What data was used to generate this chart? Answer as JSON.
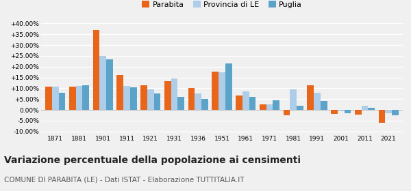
{
  "years": [
    1871,
    1881,
    1901,
    1911,
    1921,
    1931,
    1936,
    1951,
    1961,
    1971,
    1981,
    1991,
    2001,
    2011,
    2021
  ],
  "parabita": [
    10.8,
    10.8,
    37.0,
    16.0,
    11.5,
    13.3,
    10.0,
    17.8,
    6.7,
    2.7,
    -2.5,
    11.5,
    -1.8,
    -2.2,
    -6.0
  ],
  "provincia_le": [
    10.8,
    11.0,
    25.0,
    11.2,
    9.5,
    14.5,
    7.5,
    17.5,
    8.5,
    2.5,
    9.5,
    8.0,
    -0.5,
    2.0,
    -1.5
  ],
  "puglia": [
    7.8,
    11.5,
    23.5,
    10.5,
    7.5,
    6.0,
    5.2,
    21.5,
    6.0,
    4.5,
    2.0,
    4.0,
    -1.5,
    1.0,
    -2.5
  ],
  "color_parabita": "#e8651a",
  "color_provincia": "#aecde8",
  "color_puglia": "#5ba3c9",
  "title": "Variazione percentuale della popolazione ai censimenti",
  "subtitle": "COMUNE DI PARABITA (LE) - Dati ISTAT - Elaborazione TUTTITALIA.IT",
  "legend_labels": [
    "Parabita",
    "Provincia di LE",
    "Puglia"
  ],
  "ylim": [
    -11,
    42
  ],
  "yticks": [
    -10,
    -5,
    0,
    5,
    10,
    15,
    20,
    25,
    30,
    35,
    40
  ],
  "background_color": "#f0f0f0",
  "grid_color": "#ffffff",
  "title_fontsize": 10,
  "subtitle_fontsize": 7.5
}
